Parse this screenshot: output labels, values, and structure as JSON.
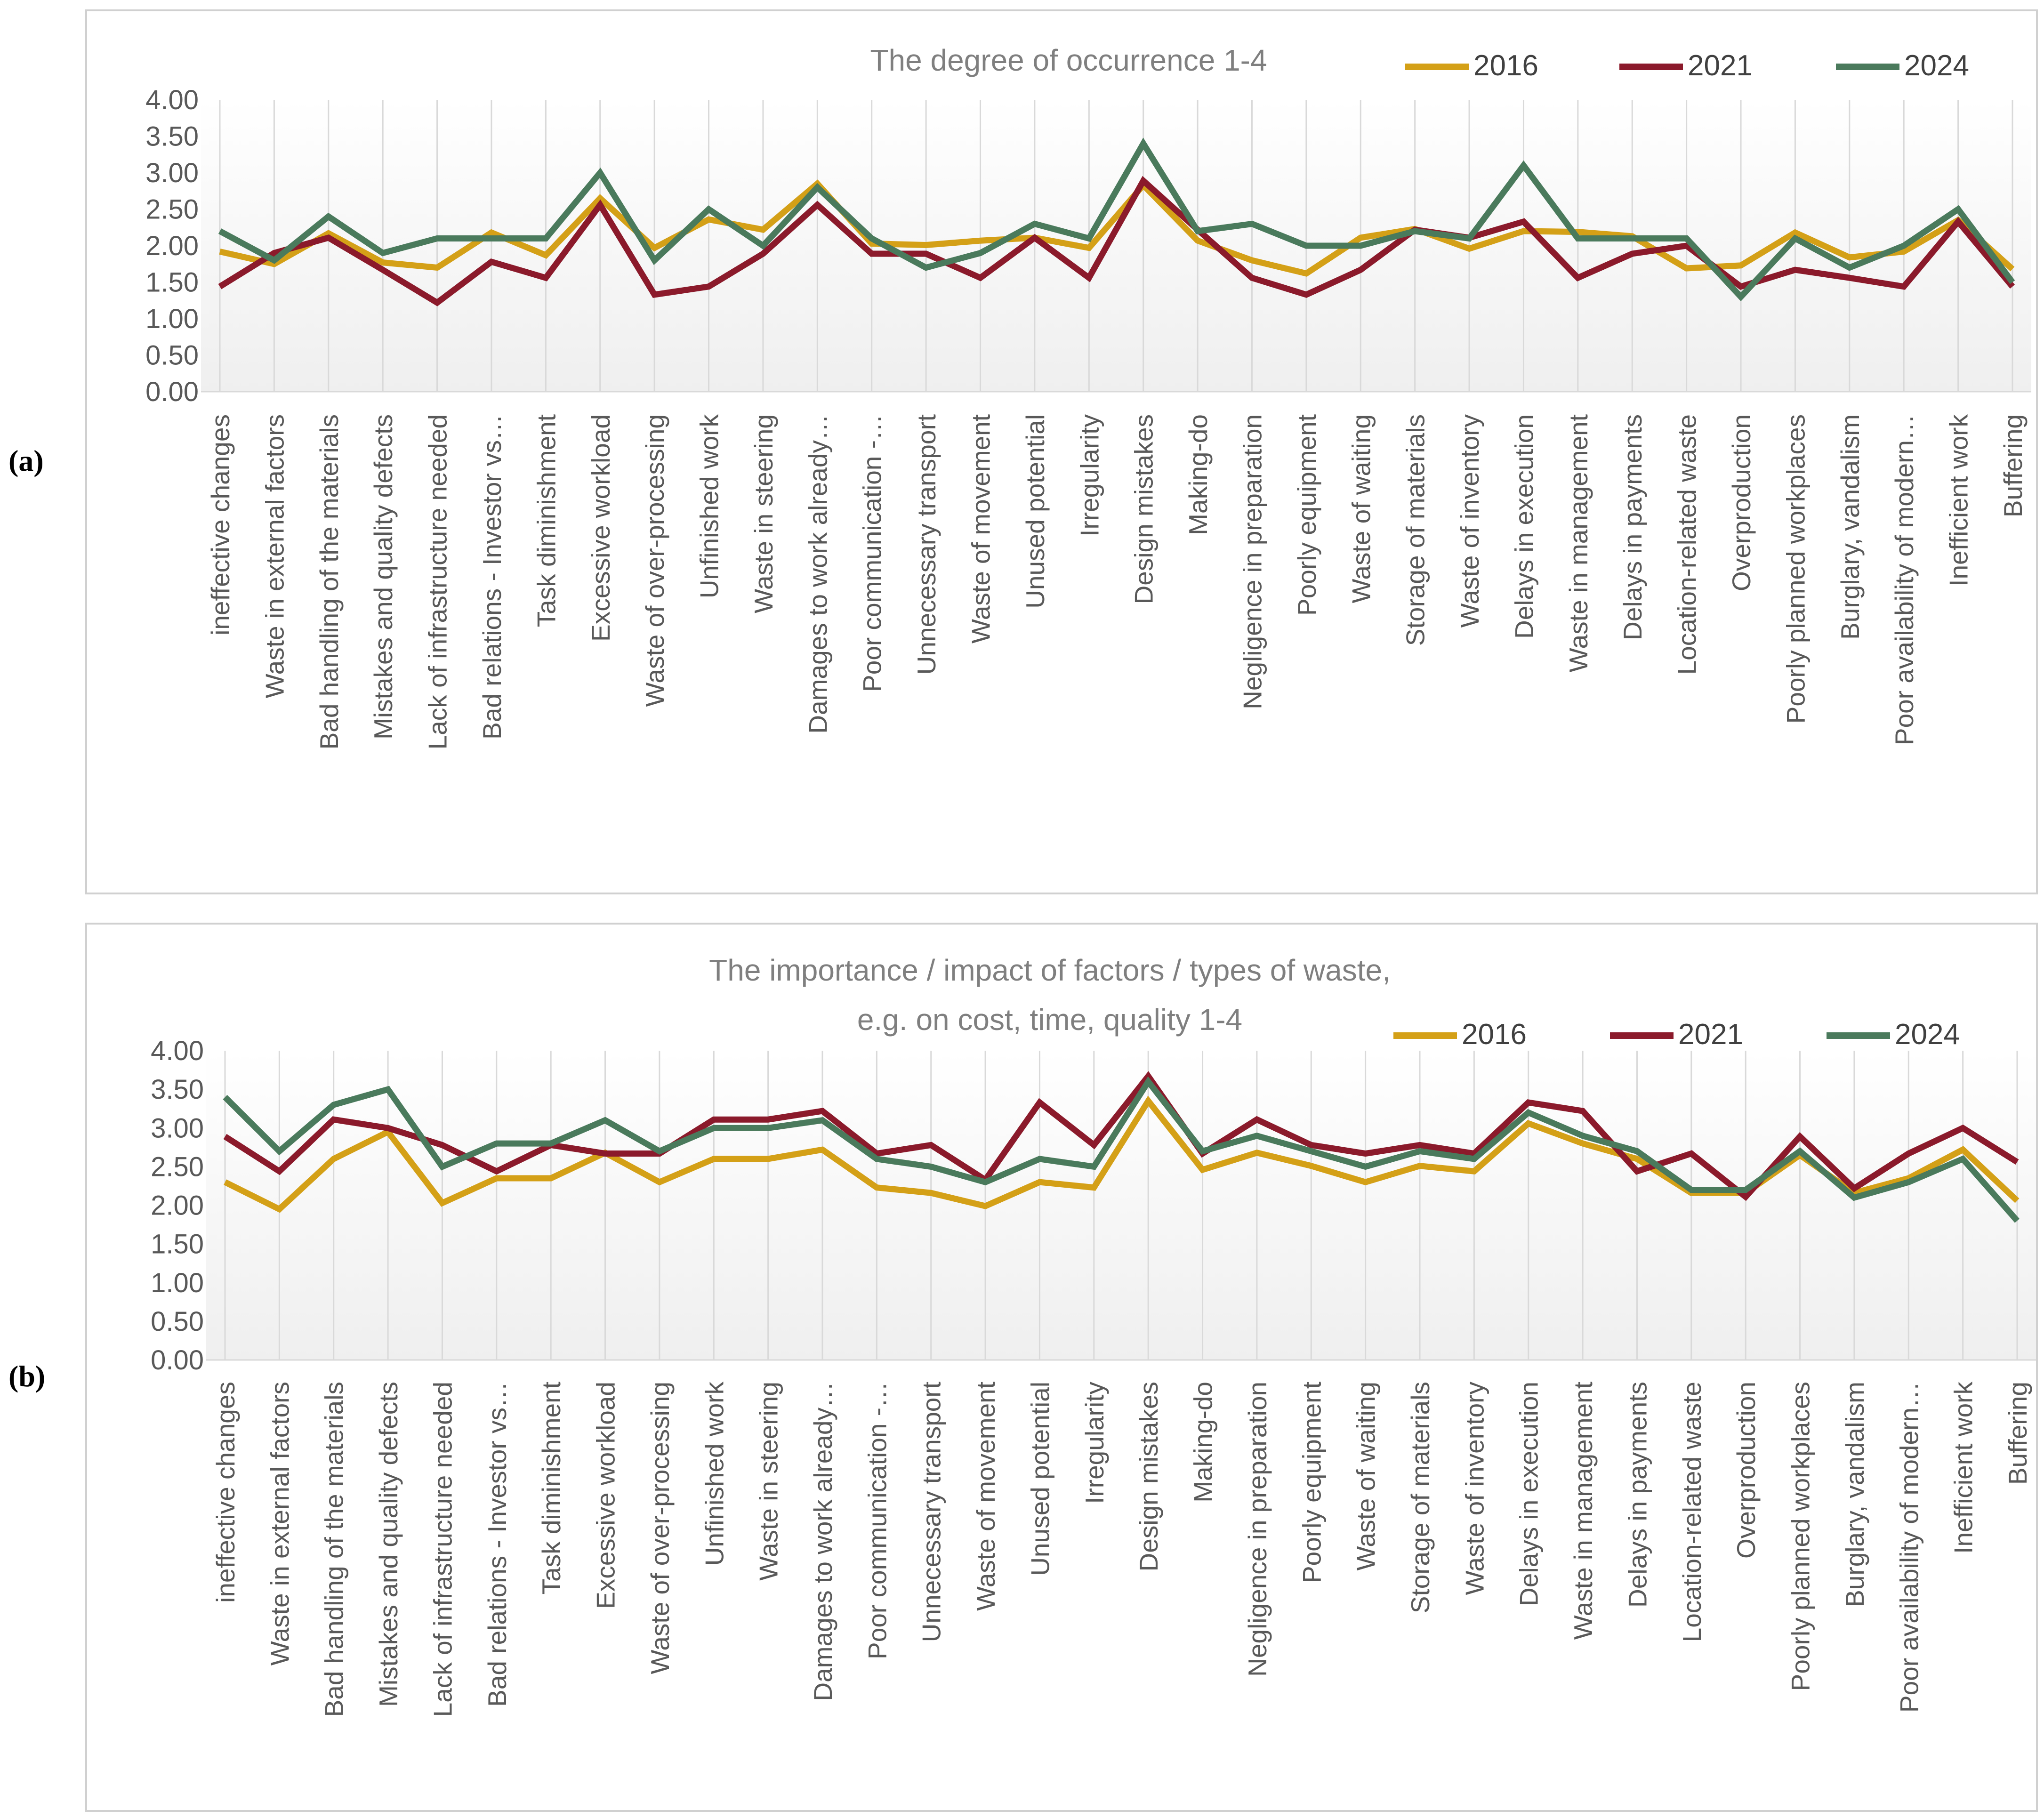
{
  "figure": {
    "panel_labels": [
      "(a)",
      "(b)"
    ]
  },
  "colors": {
    "2016": "#D4A017",
    "2021": "#8B1A2B",
    "2024": "#4A7A5C",
    "grid": "#D9D9D9",
    "text": "#595959",
    "title": "#7F7F7F",
    "frame": "#D0D0D0"
  },
  "chart_data": [
    {
      "type": "line",
      "title": [
        "The degree of occurrence 1-4"
      ],
      "legend": [
        "2016",
        "2021",
        "2024"
      ],
      "legend_position": "top-right",
      "ylim": [
        0,
        4
      ],
      "yticks": [
        "0.00",
        "0.50",
        "1.00",
        "1.50",
        "2.00",
        "2.50",
        "3.00",
        "3.50",
        "4.00"
      ],
      "grid": "vertical",
      "categories": [
        "ineffective changes",
        "Waste in external factors",
        "Bad handling of the materials",
        "Mistakes and quality defects",
        "Lack of infrastructure needed",
        "Bad relations - Investor vs…",
        "Task diminishment",
        "Excessive workload",
        "Waste of over-processing",
        "Unfinished work",
        "Waste in steering",
        "Damages to work already…",
        "Poor communication -…",
        "Unnecessary transport",
        "Waste of movement",
        "Unused potential",
        "Irregularity",
        "Design mistakes",
        "Making-do",
        "Negligence in preparation",
        "Poorly equipment",
        "Waste of waiting",
        "Storage of materials",
        "Waste of inventory",
        "Delays in execution",
        "Waste in management",
        "Delays in payments",
        "Location-related waste",
        "Overproduction",
        "Poorly planned workplaces",
        "Burglary, vandalism",
        "Poor availability of modern…",
        "Inefficient work",
        "Buffering"
      ],
      "series": [
        {
          "name": "2016",
          "values": [
            1.92,
            1.75,
            2.17,
            1.77,
            1.7,
            2.18,
            1.87,
            2.65,
            1.97,
            2.36,
            2.22,
            2.85,
            2.03,
            2.01,
            2.07,
            2.11,
            1.97,
            2.83,
            2.07,
            1.8,
            1.62,
            2.11,
            2.23,
            1.96,
            2.2,
            2.19,
            2.13,
            1.69,
            1.73,
            2.18,
            1.84,
            1.92,
            2.35,
            1.68
          ]
        },
        {
          "name": "2021",
          "values": [
            1.44,
            1.9,
            2.11,
            1.67,
            1.22,
            1.78,
            1.56,
            2.56,
            1.33,
            1.44,
            1.89,
            2.56,
            1.89,
            1.89,
            1.56,
            2.11,
            1.56,
            2.89,
            2.22,
            1.56,
            1.33,
            1.67,
            2.22,
            2.11,
            2.33,
            1.56,
            1.89,
            2.0,
            1.44,
            1.67,
            1.56,
            1.44,
            2.33,
            1.44
          ]
        },
        {
          "name": "2024",
          "values": [
            2.2,
            1.8,
            2.4,
            1.9,
            2.1,
            2.1,
            2.1,
            3.0,
            1.8,
            2.5,
            2.0,
            2.8,
            2.1,
            1.7,
            1.9,
            2.3,
            2.1,
            3.4,
            2.2,
            2.3,
            2.0,
            2.0,
            2.2,
            2.1,
            3.1,
            2.1,
            2.1,
            2.1,
            1.3,
            2.1,
            1.7,
            2.0,
            2.5,
            1.5
          ]
        }
      ]
    },
    {
      "type": "line",
      "title": [
        "The importance / impact of factors / types of waste,",
        "e.g. on cost, time, quality 1-4"
      ],
      "legend": [
        "2016",
        "2021",
        "2024"
      ],
      "legend_position": "top-right",
      "ylim": [
        0,
        4
      ],
      "yticks": [
        "0.00",
        "0.50",
        "1.00",
        "1.50",
        "2.00",
        "2.50",
        "3.00",
        "3.50",
        "4.00"
      ],
      "grid": "vertical",
      "categories": [
        "ineffective changes",
        "Waste in external factors",
        "Bad handling of the materials",
        "Mistakes and quality defects",
        "Lack of infrastructure needed",
        "Bad relations - Investor vs…",
        "Task diminishment",
        "Excessive workload",
        "Waste of over-processing",
        "Unfinished work",
        "Waste in steering",
        "Damages to work already…",
        "Poor communication -…",
        "Unnecessary transport",
        "Waste of movement",
        "Unused potential",
        "Irregularity",
        "Design mistakes",
        "Making-do",
        "Negligence in preparation",
        "Poorly equipment",
        "Waste of waiting",
        "Storage of materials",
        "Waste of inventory",
        "Delays in execution",
        "Waste in management",
        "Delays in payments",
        "Location-related waste",
        "Overproduction",
        "Poorly planned workplaces",
        "Burglary, vandalism",
        "Poor availability of modern…",
        "Inefficient work",
        "Buffering"
      ],
      "series": [
        {
          "name": "2016",
          "values": [
            2.3,
            1.95,
            2.6,
            2.95,
            2.03,
            2.35,
            2.35,
            2.68,
            2.3,
            2.6,
            2.6,
            2.72,
            2.23,
            2.16,
            1.99,
            2.3,
            2.23,
            3.35,
            2.46,
            2.68,
            2.51,
            2.3,
            2.51,
            2.44,
            3.06,
            2.8,
            2.6,
            2.16,
            2.16,
            2.65,
            2.16,
            2.35,
            2.72,
            2.06
          ]
        },
        {
          "name": "2021",
          "values": [
            2.89,
            2.44,
            3.11,
            3.0,
            2.78,
            2.44,
            2.78,
            2.67,
            2.67,
            3.11,
            3.11,
            3.22,
            2.67,
            2.78,
            2.33,
            3.33,
            2.78,
            3.67,
            2.67,
            3.11,
            2.78,
            2.67,
            2.78,
            2.67,
            3.33,
            3.22,
            2.44,
            2.67,
            2.11,
            2.89,
            2.22,
            2.67,
            3.0,
            2.56
          ]
        },
        {
          "name": "2024",
          "values": [
            3.4,
            2.7,
            3.3,
            3.5,
            2.5,
            2.8,
            2.8,
            3.1,
            2.7,
            3.0,
            3.0,
            3.1,
            2.6,
            2.5,
            2.3,
            2.6,
            2.5,
            3.6,
            2.7,
            2.9,
            2.7,
            2.5,
            2.7,
            2.6,
            3.2,
            2.9,
            2.7,
            2.2,
            2.2,
            2.7,
            2.1,
            2.3,
            2.6,
            1.8
          ]
        }
      ]
    }
  ]
}
